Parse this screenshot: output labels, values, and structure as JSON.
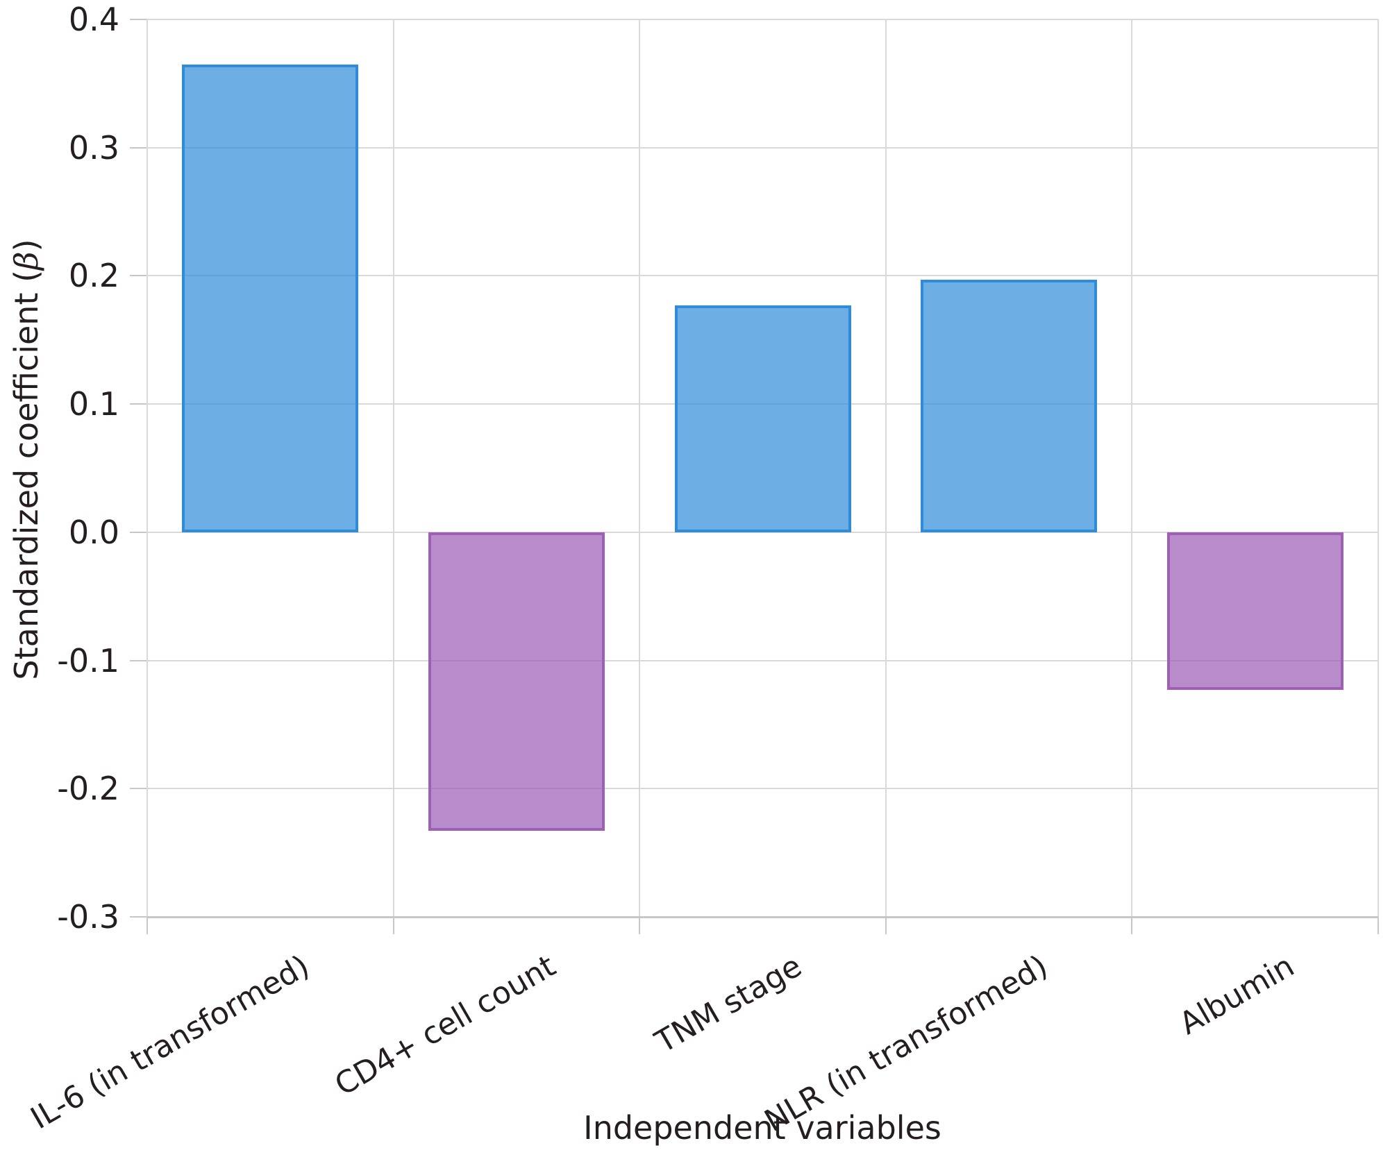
{
  "chart_data": {
    "type": "bar",
    "title": "",
    "xlabel": "Independent variables",
    "ylabel": "Standardized coefficient (β)",
    "ylabel_parts": {
      "prefix": "Standardized coefficient (",
      "beta": "β",
      "suffix": ")"
    },
    "categories": [
      "IL-6 (in transformed)",
      "CD4+ cell count",
      "TNM stage",
      "NLR (in transformed)",
      "Albumin"
    ],
    "values": [
      0.365,
      -0.233,
      0.177,
      0.197,
      -0.123
    ],
    "ylim": [
      -0.3,
      0.4
    ],
    "yticks": [
      0.4,
      0.3,
      0.2,
      0.1,
      0.0,
      -0.1,
      -0.2,
      -0.3
    ],
    "ytick_labels": [
      "0.4",
      "0.3",
      "0.2",
      "0.1",
      "0.0",
      "-0.1",
      "-0.2",
      "-0.3"
    ],
    "grid": true,
    "legend": null,
    "colors": {
      "positive_fill": "rgba(47,140,216,0.70)",
      "positive_edge": "#2F8CD8",
      "negative_fill": "rgba(156,95,181,0.72)",
      "negative_edge": "#9C5FB5",
      "gridline": "#D9D9D9",
      "axis_line": "#C7C7C7",
      "text": "#241E1E"
    }
  }
}
